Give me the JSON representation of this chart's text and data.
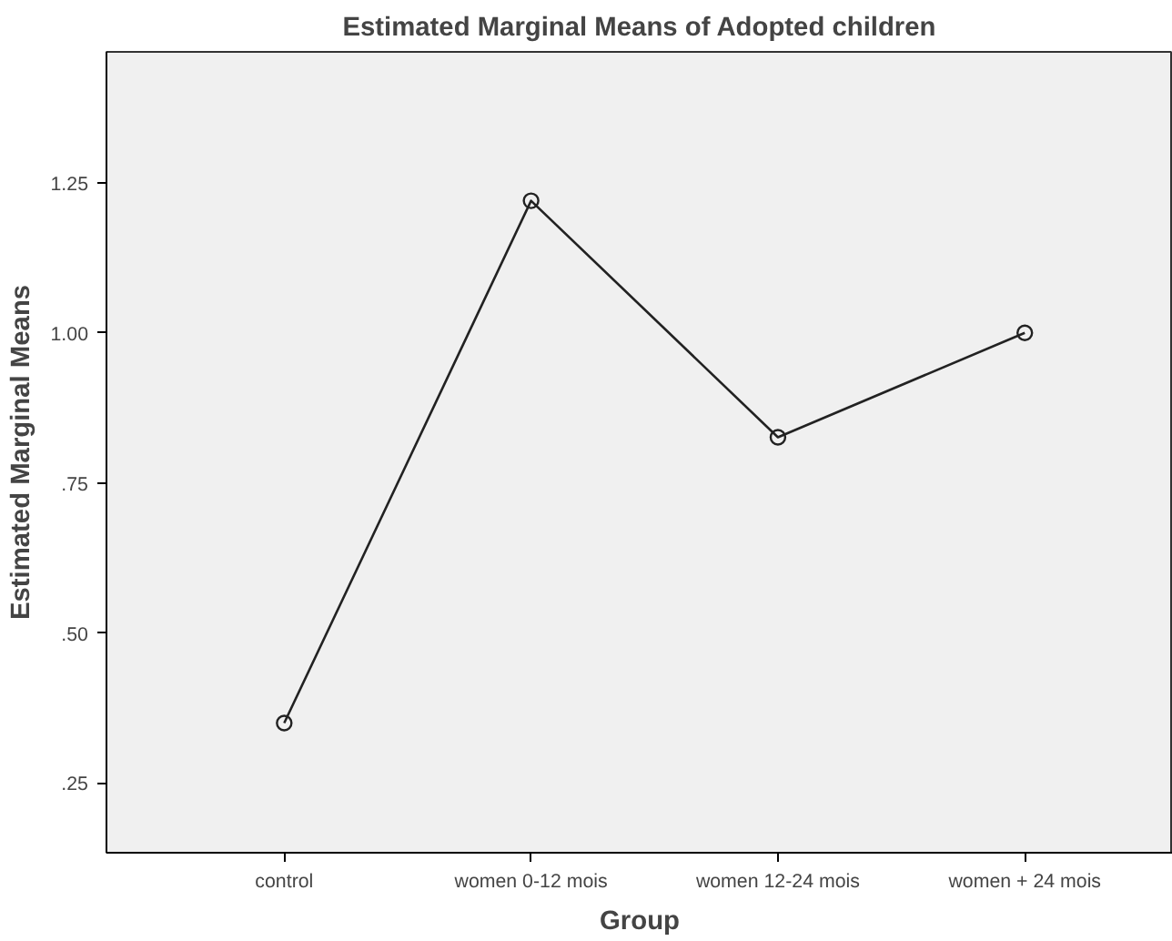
{
  "chart_data": {
    "type": "line",
    "title": "Estimated Marginal Means of Adopted children",
    "xlabel": "Group",
    "ylabel": "Estimated Marginal Means",
    "categories": [
      "control",
      "women 0-12 mois",
      "women 12-24 mois",
      "women + 24 mois"
    ],
    "series": [
      {
        "color": "#222222",
        "values": [
          0.35,
          1.22,
          0.826,
          1.0
        ]
      }
    ],
    "ylim": [
      0.134,
      1.468
    ],
    "yticks": [
      {
        "value": 0.25,
        "label": ".25"
      },
      {
        "value": 0.5,
        "label": ".50"
      },
      {
        "value": 0.75,
        "label": ".75"
      },
      {
        "value": 1.0,
        "label": "1.00"
      },
      {
        "value": 1.25,
        "label": "1.25"
      }
    ],
    "grid": false,
    "marker": "circle",
    "line_style": "solid"
  }
}
